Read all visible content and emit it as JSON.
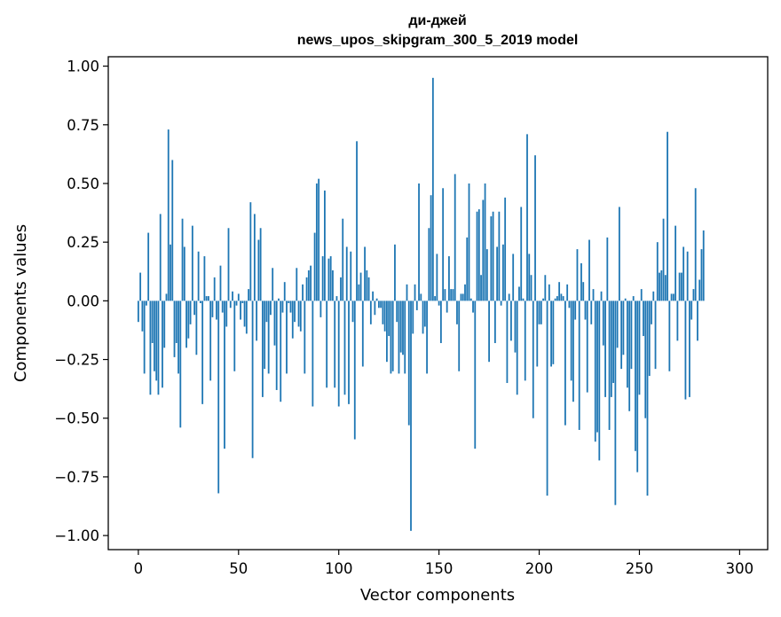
{
  "chart_data": {
    "type": "bar",
    "title_line1": "ди-джей",
    "title_line2": "news_upos_skipgram_300_5_2019 model",
    "xlabel": "Vector components",
    "ylabel": "Components values",
    "xlim": [
      -15,
      314
    ],
    "ylim": [
      -1.06,
      1.04
    ],
    "xticks": [
      0,
      50,
      100,
      150,
      200,
      250,
      300
    ],
    "xtick_labels": [
      "0",
      "50",
      "100",
      "150",
      "200",
      "250",
      "300"
    ],
    "yticks": [
      1.0,
      0.75,
      0.5,
      0.25,
      0.0,
      -0.25,
      -0.5,
      -0.75,
      -1.0
    ],
    "ytick_labels": [
      "1.00",
      "0.75",
      "0.50",
      "0.25",
      "0.00",
      "−0.25",
      "−0.50",
      "−0.75",
      "−1.00"
    ],
    "bar_color": "#1f77b4",
    "values": [
      -0.09,
      0.12,
      -0.13,
      -0.31,
      -0.02,
      0.29,
      -0.4,
      -0.18,
      -0.3,
      -0.34,
      -0.4,
      0.37,
      -0.37,
      -0.2,
      0.03,
      0.73,
      0.24,
      0.6,
      -0.24,
      -0.18,
      -0.31,
      -0.54,
      0.35,
      0.23,
      -0.2,
      -0.16,
      -0.1,
      0.32,
      -0.06,
      -0.23,
      0.21,
      -0.01,
      -0.44,
      0.19,
      0.02,
      0.02,
      -0.34,
      -0.07,
      0.1,
      -0.08,
      -0.82,
      0.15,
      -0.05,
      -0.63,
      -0.11,
      0.31,
      -0.03,
      0.04,
      -0.3,
      -0.02,
      0.03,
      -0.08,
      -0.01,
      -0.11,
      -0.14,
      0.05,
      0.42,
      -0.67,
      0.37,
      -0.17,
      0.26,
      0.31,
      -0.41,
      -0.29,
      -0.09,
      -0.31,
      -0.06,
      0.14,
      -0.19,
      -0.38,
      0.01,
      -0.43,
      -0.05,
      0.08,
      -0.31,
      -0.01,
      -0.05,
      -0.16,
      -0.09,
      0.14,
      -0.11,
      -0.13,
      0.07,
      -0.31,
      0.1,
      0.13,
      0.15,
      -0.45,
      0.29,
      0.5,
      0.52,
      -0.07,
      0.19,
      0.47,
      -0.37,
      0.18,
      0.19,
      0.13,
      -0.37,
      0.02,
      -0.45,
      0.1,
      0.35,
      -0.4,
      0.23,
      -0.44,
      0.21,
      -0.09,
      -0.59,
      0.68,
      0.07,
      0.12,
      -0.28,
      0.23,
      0.13,
      0.1,
      -0.1,
      0.04,
      -0.06,
      0.01,
      -0.03,
      -0.03,
      -0.1,
      -0.13,
      -0.26,
      -0.15,
      -0.31,
      -0.3,
      0.24,
      -0.09,
      -0.31,
      -0.22,
      -0.23,
      -0.31,
      0.07,
      -0.53,
      -0.98,
      -0.14,
      0.07,
      -0.04,
      0.5,
      0.03,
      -0.14,
      -0.11,
      -0.31,
      0.31,
      0.45,
      0.95,
      0.02,
      0.2,
      -0.02,
      -0.18,
      0.48,
      0.05,
      -0.05,
      0.19,
      0.05,
      0.05,
      0.54,
      -0.1,
      -0.3,
      0.03,
      0.03,
      0.07,
      0.27,
      0.5,
      0.01,
      -0.05,
      -0.63,
      0.38,
      0.39,
      0.11,
      0.43,
      0.5,
      0.22,
      -0.26,
      0.36,
      0.38,
      -0.18,
      0.23,
      0.38,
      -0.02,
      0.24,
      0.44,
      -0.35,
      0.03,
      -0.17,
      0.2,
      -0.22,
      -0.4,
      0.06,
      0.4,
      0.01,
      -0.34,
      0.71,
      0.2,
      0.11,
      -0.5,
      0.62,
      -0.28,
      -0.1,
      -0.1,
      0.01,
      0.11,
      -0.83,
      0.07,
      -0.28,
      -0.27,
      0.01,
      0.02,
      0.08,
      0.03,
      0.02,
      -0.53,
      0.07,
      -0.03,
      -0.34,
      -0.43,
      -0.08,
      0.22,
      -0.55,
      0.16,
      0.08,
      -0.08,
      -0.39,
      0.26,
      -0.1,
      0.05,
      -0.6,
      -0.56,
      -0.68,
      0.04,
      -0.19,
      -0.41,
      0.27,
      -0.55,
      -0.41,
      -0.35,
      -0.87,
      -0.2,
      0.4,
      -0.29,
      -0.23,
      0.01,
      -0.37,
      -0.47,
      -0.29,
      0.02,
      -0.64,
      -0.73,
      -0.4,
      0.05,
      -0.15,
      -0.5,
      -0.83,
      -0.32,
      -0.1,
      0.04,
      -0.29,
      0.25,
      0.12,
      0.13,
      0.35,
      0.11,
      0.72,
      -0.3,
      0.03,
      0.03,
      0.32,
      -0.17,
      0.12,
      0.12,
      0.23,
      -0.42,
      0.21,
      -0.41,
      -0.08,
      0.05,
      0.48,
      -0.17,
      0.09,
      0.22,
      0.3
    ]
  }
}
